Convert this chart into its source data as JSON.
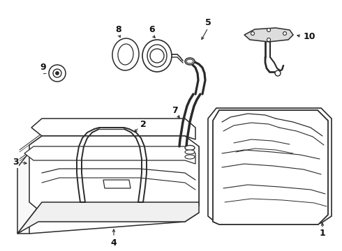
{
  "background_color": "#ffffff",
  "line_color": "#2a2a2a",
  "label_color": "#111111",
  "figsize": [
    4.9,
    3.6
  ],
  "dpi": 100
}
